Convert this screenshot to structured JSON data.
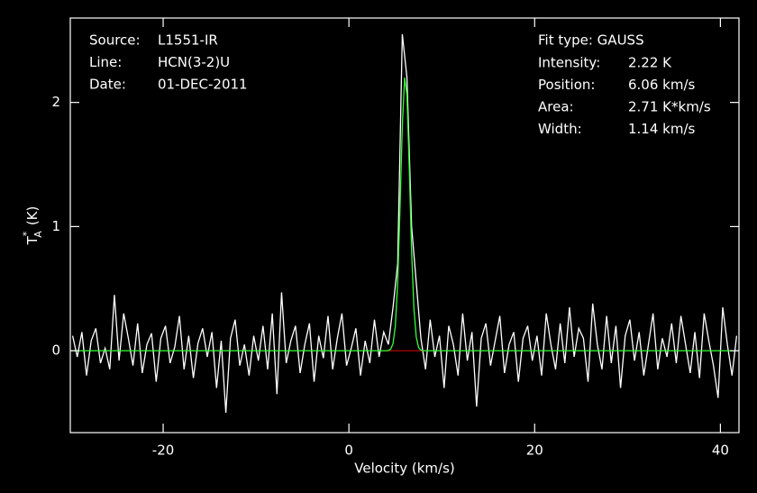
{
  "chart_data": {
    "type": "line",
    "xlabel": "Velocity (km/s)",
    "ylabel": {
      "base": "T",
      "sup": "*",
      "sub": "A",
      "unit": "(K)"
    },
    "info_left": [
      {
        "label": "Source:",
        "text": "L1551-IR"
      },
      {
        "label": "Line:",
        "text": "HCN(3-2)U"
      },
      {
        "label": "Date:",
        "text": "01-DEC-2011"
      }
    ],
    "fit_type": "Fit type: GAUSS",
    "fit_params": [
      {
        "label": "Intensity:",
        "text": "2.22 K"
      },
      {
        "label": "Position:",
        "text": "6.06 km/s"
      },
      {
        "label": "Area:",
        "text": "2.71 K*km/s"
      },
      {
        "label": "Width:",
        "text": "1.14 km/s"
      }
    ],
    "xlim": [
      -30,
      42
    ],
    "ylim": [
      -0.66,
      2.68
    ],
    "xticks": [
      -20,
      0,
      20,
      40
    ],
    "yticks": [
      0,
      1,
      2
    ],
    "x": [
      -29.75,
      -29.25,
      -28.75,
      -28.25,
      -27.75,
      -27.25,
      -26.75,
      -26.25,
      -25.75,
      -25.25,
      -24.75,
      -24.25,
      -23.75,
      -23.25,
      -22.75,
      -22.25,
      -21.75,
      -21.25,
      -20.75,
      -20.25,
      -19.75,
      -19.25,
      -18.75,
      -18.25,
      -17.75,
      -17.25,
      -16.75,
      -16.25,
      -15.75,
      -15.25,
      -14.75,
      -14.25,
      -13.75,
      -13.25,
      -12.75,
      -12.25,
      -11.75,
      -11.25,
      -10.75,
      -10.25,
      -9.75,
      -9.25,
      -8.75,
      -8.25,
      -7.75,
      -7.25,
      -6.75,
      -6.25,
      -5.75,
      -5.25,
      -4.75,
      -4.25,
      -3.75,
      -3.25,
      -2.75,
      -2.25,
      -1.75,
      -1.25,
      -0.75,
      -0.25,
      0.25,
      0.75,
      1.25,
      1.75,
      2.25,
      2.75,
      3.25,
      3.75,
      4.25,
      4.75,
      5.25,
      5.75,
      6.25,
      6.75,
      7.25,
      7.75,
      8.25,
      8.75,
      9.25,
      9.75,
      10.25,
      10.75,
      11.25,
      11.75,
      12.25,
      12.75,
      13.25,
      13.75,
      14.25,
      14.75,
      15.25,
      15.75,
      16.25,
      16.75,
      17.25,
      17.75,
      18.25,
      18.75,
      19.25,
      19.75,
      20.25,
      20.75,
      21.25,
      21.75,
      22.25,
      22.75,
      23.25,
      23.75,
      24.25,
      24.75,
      25.25,
      25.75,
      26.25,
      26.75,
      27.25,
      27.75,
      28.25,
      28.75,
      29.25,
      29.75,
      30.25,
      30.75,
      31.25,
      31.75,
      32.25,
      32.75,
      33.25,
      33.75,
      34.25,
      34.75,
      35.25,
      35.75,
      36.25,
      36.75,
      37.25,
      37.75,
      38.25,
      38.75,
      39.25,
      39.75,
      40.25,
      40.75,
      41.25,
      41.75
    ],
    "series": [
      {
        "color": "#ffffff",
        "values": [
          0.12,
          -0.05,
          0.15,
          -0.2,
          0.08,
          0.18,
          -0.1,
          0.02,
          -0.15,
          0.45,
          -0.08,
          0.3,
          0.1,
          -0.12,
          0.22,
          -0.18,
          0.05,
          0.14,
          -0.25,
          0.1,
          0.2,
          -0.1,
          0.03,
          0.28,
          -0.15,
          0.12,
          -0.22,
          0.06,
          0.18,
          -0.05,
          0.15,
          -0.3,
          0.08,
          -0.5,
          0.1,
          0.25,
          -0.12,
          0.05,
          -0.2,
          0.12,
          -0.08,
          0.2,
          -0.15,
          0.3,
          -0.35,
          0.47,
          -0.1,
          0.08,
          0.2,
          -0.18,
          0.05,
          0.22,
          -0.25,
          0.12,
          -0.06,
          0.28,
          -0.15,
          0.1,
          0.3,
          -0.12,
          0.02,
          0.18,
          -0.2,
          0.08,
          -0.1,
          0.25,
          -0.05,
          0.15,
          0.05,
          0.35,
          0.7,
          2.55,
          2.2,
          1.0,
          0.55,
          0.1,
          -0.15,
          0.25,
          -0.05,
          0.12,
          -0.3,
          0.2,
          0.05,
          -0.2,
          0.3,
          -0.08,
          0.15,
          -0.45,
          0.1,
          0.22,
          -0.12,
          0.08,
          0.28,
          -0.18,
          0.05,
          0.15,
          -0.25,
          0.1,
          0.2,
          -0.08,
          0.12,
          -0.2,
          0.3,
          0.05,
          -0.15,
          0.22,
          -0.1,
          0.35,
          -0.05,
          0.18,
          0.1,
          -0.25,
          0.38,
          0.05,
          -0.15,
          0.28,
          -0.1,
          0.2,
          -0.3,
          0.12,
          0.25,
          -0.08,
          0.15,
          -0.2,
          0.05,
          0.3,
          -0.15,
          0.1,
          -0.05,
          0.22,
          -0.1,
          0.28,
          0.05,
          -0.18,
          0.15,
          -0.22,
          0.3,
          0.08,
          -0.12,
          -0.38,
          0.35,
          0.05,
          -0.2,
          0.12
        ]
      },
      {
        "color": "#b00000",
        "x": [
          3.5,
          8.5
        ],
        "values": [
          0,
          0
        ]
      },
      {
        "color": "#33ff33",
        "x": [
          -30,
          4,
          4.25,
          4.5,
          4.75,
          5,
          5.25,
          5.5,
          5.75,
          6,
          6.25,
          6.5,
          6.75,
          7,
          7.25,
          7.5,
          7.75,
          8,
          42
        ],
        "values": [
          0,
          0,
          0.002,
          0.012,
          0.057,
          0.2,
          0.55,
          1.14,
          1.81,
          2.2,
          2.06,
          1.47,
          0.8,
          0.34,
          0.11,
          0.026,
          0.005,
          0,
          0
        ]
      }
    ]
  }
}
